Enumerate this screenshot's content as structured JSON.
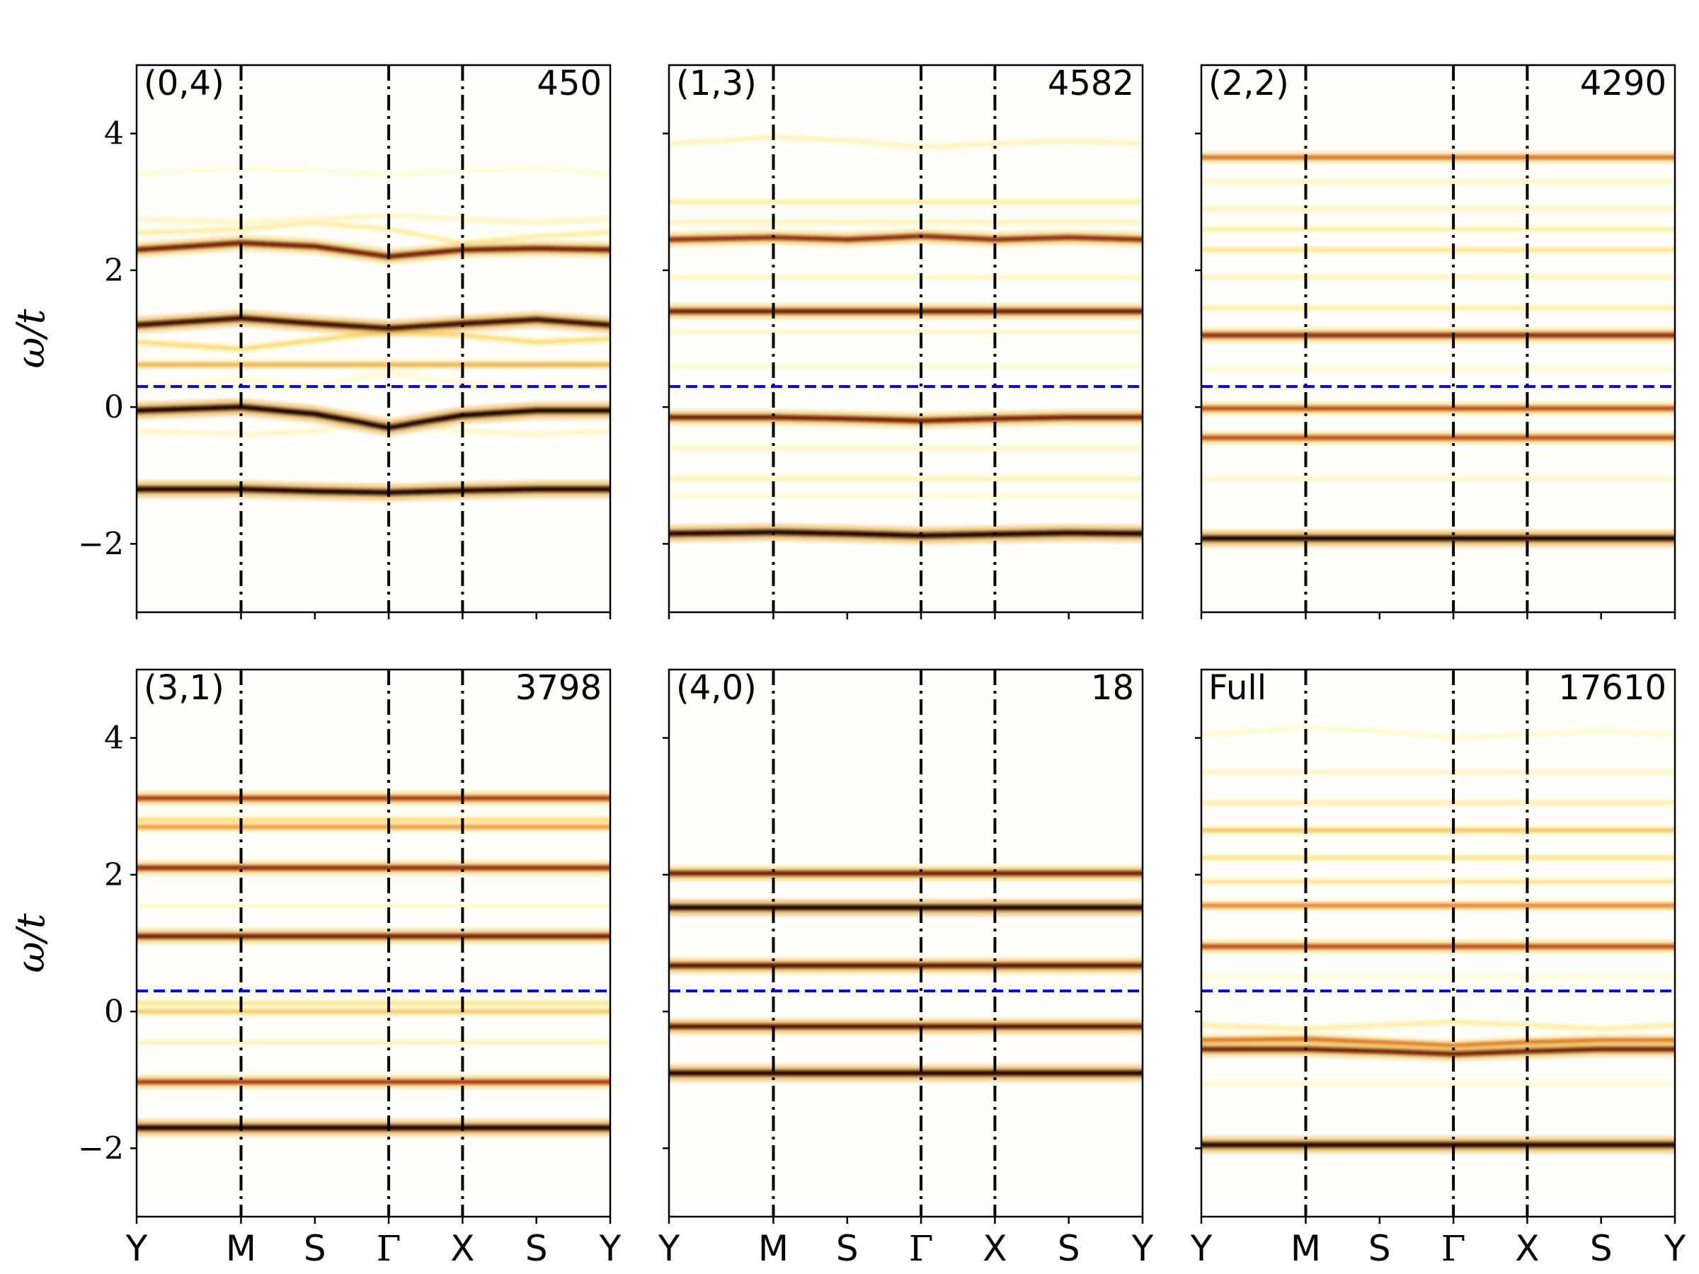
{
  "chart_data": {
    "type": "heatmap",
    "ylabel": "ω/t",
    "ylim": [
      -3,
      5
    ],
    "yticks": [
      -2,
      0,
      2,
      4
    ],
    "ytick_labels": [
      "−2",
      "0",
      "2",
      "4"
    ],
    "xtick_labels": [
      "Y",
      "M",
      "S",
      "Γ",
      "X",
      "S",
      "Y"
    ],
    "path_positions": [
      0,
      1.414,
      2.414,
      3.414,
      4.414,
      5.414,
      6.414
    ],
    "symmetry_points": [
      1.414,
      3.414,
      4.414
    ],
    "reference_line": {
      "y": 0.3,
      "style": "dashed",
      "color": "#0000dd"
    },
    "colormap": "afmhot_r",
    "panels": [
      {
        "label": "(0,4)",
        "count": "450",
        "bands": [
          {
            "y": [
              -1.2,
              -1.2,
              -1.23,
              -1.25,
              -1.22,
              -1.2,
              -1.2
            ],
            "w": 1.0
          },
          {
            "y": [
              -0.05,
              0.0,
              -0.1,
              -0.3,
              -0.12,
              -0.05,
              -0.05
            ],
            "w": 1.0
          },
          {
            "y": [
              1.2,
              1.3,
              1.22,
              1.15,
              1.22,
              1.28,
              1.2
            ],
            "w": 0.95
          },
          {
            "y": [
              0.95,
              0.85,
              0.98,
              1.1,
              1.05,
              0.95,
              1.0
            ],
            "w": 0.35
          },
          {
            "y": [
              0.62,
              0.62,
              0.62,
              0.62,
              0.62,
              0.62,
              0.62
            ],
            "w": 0.45
          },
          {
            "y": [
              2.3,
              2.4,
              2.35,
              2.2,
              2.3,
              2.32,
              2.3
            ],
            "w": 0.85
          },
          {
            "y": [
              2.55,
              2.6,
              2.7,
              2.6,
              2.4,
              2.5,
              2.55
            ],
            "w": 0.25
          },
          {
            "y": [
              2.75,
              2.7,
              2.75,
              2.8,
              2.75,
              2.7,
              2.75
            ],
            "w": 0.18
          },
          {
            "y": [
              3.4,
              3.5,
              3.45,
              3.4,
              3.45,
              3.5,
              3.4
            ],
            "w": 0.12
          },
          {
            "y": [
              -0.35,
              -0.4,
              -0.35,
              -0.2,
              -0.35,
              -0.4,
              -0.35
            ],
            "w": 0.18
          },
          {
            "y": [
              0.3,
              0.4,
              0.3,
              0.5,
              0.35,
              0.3,
              0.3
            ],
            "w": 0.15
          }
        ]
      },
      {
        "label": "(1,3)",
        "count": "4582",
        "bands": [
          {
            "y": [
              -1.85,
              -1.83,
              -1.85,
              -1.88,
              -1.86,
              -1.84,
              -1.85
            ],
            "w": 1.0
          },
          {
            "y": [
              -0.15,
              -0.15,
              -0.17,
              -0.2,
              -0.17,
              -0.15,
              -0.15
            ],
            "w": 0.85
          },
          {
            "y": [
              1.4,
              1.4,
              1.4,
              1.4,
              1.4,
              1.4,
              1.4
            ],
            "w": 0.85
          },
          {
            "y": [
              2.45,
              2.48,
              2.45,
              2.5,
              2.45,
              2.48,
              2.45
            ],
            "w": 0.8
          },
          {
            "y": [
              3.85,
              3.95,
              3.9,
              3.8,
              3.85,
              3.9,
              3.85
            ],
            "w": 0.2
          },
          {
            "y": [
              3.0,
              3.0,
              3.0,
              3.0,
              3.0,
              3.0,
              3.0
            ],
            "w": 0.25
          },
          {
            "y": [
              2.7,
              2.7,
              2.7,
              2.7,
              2.7,
              2.7,
              2.7
            ],
            "w": 0.2
          },
          {
            "y": [
              1.9,
              1.9,
              1.9,
              1.9,
              1.9,
              1.9,
              1.9
            ],
            "w": 0.18
          },
          {
            "y": [
              1.1,
              1.1,
              1.1,
              1.1,
              1.1,
              1.1,
              1.1
            ],
            "w": 0.18
          },
          {
            "y": [
              0.6,
              0.6,
              0.6,
              0.6,
              0.6,
              0.6,
              0.6
            ],
            "w": 0.15
          },
          {
            "y": [
              -0.6,
              -0.6,
              -0.6,
              -0.6,
              -0.6,
              -0.6,
              -0.6
            ],
            "w": 0.18
          },
          {
            "y": [
              -1.05,
              -1.05,
              -1.05,
              -1.05,
              -1.05,
              -1.05,
              -1.05
            ],
            "w": 0.22
          },
          {
            "y": [
              -1.3,
              -1.3,
              -1.3,
              -1.3,
              -1.3,
              -1.3,
              -1.3
            ],
            "w": 0.15
          }
        ]
      },
      {
        "label": "(2,2)",
        "count": "4290",
        "bands": [
          {
            "y": [
              -1.92,
              -1.92,
              -1.92,
              -1.92,
              -1.92,
              -1.92,
              -1.92
            ],
            "w": 1.0
          },
          {
            "y": [
              -0.45,
              -0.45,
              -0.45,
              -0.45,
              -0.45,
              -0.45,
              -0.45
            ],
            "w": 0.7
          },
          {
            "y": [
              -0.02,
              -0.02,
              -0.02,
              -0.02,
              -0.02,
              -0.02,
              -0.02
            ],
            "w": 0.7
          },
          {
            "y": [
              1.05,
              1.05,
              1.05,
              1.05,
              1.05,
              1.05,
              1.05
            ],
            "w": 0.8
          },
          {
            "y": [
              1.45,
              1.45,
              1.45,
              1.45,
              1.45,
              1.45,
              1.45
            ],
            "w": 0.25
          },
          {
            "y": [
              1.9,
              1.9,
              1.9,
              1.9,
              1.9,
              1.9,
              1.9
            ],
            "w": 0.2
          },
          {
            "y": [
              2.3,
              2.3,
              2.3,
              2.3,
              2.3,
              2.3,
              2.3
            ],
            "w": 0.3
          },
          {
            "y": [
              2.6,
              2.6,
              2.6,
              2.6,
              2.6,
              2.6,
              2.6
            ],
            "w": 0.25
          },
          {
            "y": [
              2.9,
              2.9,
              2.9,
              2.9,
              2.9,
              2.9,
              2.9
            ],
            "w": 0.2
          },
          {
            "y": [
              3.3,
              3.3,
              3.3,
              3.3,
              3.3,
              3.3,
              3.3
            ],
            "w": 0.18
          },
          {
            "y": [
              3.65,
              3.65,
              3.65,
              3.65,
              3.65,
              3.65,
              3.65
            ],
            "w": 0.6
          },
          {
            "y": [
              -1.05,
              -1.05,
              -1.05,
              -1.05,
              -1.05,
              -1.05,
              -1.05
            ],
            "w": 0.18
          },
          {
            "y": [
              0.55,
              0.55,
              0.55,
              0.55,
              0.55,
              0.55,
              0.55
            ],
            "w": 0.15
          }
        ]
      },
      {
        "label": "(3,1)",
        "count": "3798",
        "bands": [
          {
            "y": [
              -1.7,
              -1.7,
              -1.7,
              -1.7,
              -1.7,
              -1.7,
              -1.7
            ],
            "w": 1.0
          },
          {
            "y": [
              -1.03,
              -1.03,
              -1.03,
              -1.03,
              -1.03,
              -1.03,
              -1.03
            ],
            "w": 0.75
          },
          {
            "y": [
              -0.45,
              -0.45,
              -0.45,
              -0.45,
              -0.45,
              -0.45,
              -0.45
            ],
            "w": 0.2
          },
          {
            "y": [
              0.0,
              0.0,
              0.0,
              0.0,
              0.0,
              0.0,
              0.0
            ],
            "w": 0.4
          },
          {
            "y": [
              0.12,
              0.12,
              0.12,
              0.12,
              0.12,
              0.12,
              0.12
            ],
            "w": 0.3
          },
          {
            "y": [
              1.1,
              1.1,
              1.1,
              1.1,
              1.1,
              1.1,
              1.1
            ],
            "w": 0.85
          },
          {
            "y": [
              2.1,
              2.1,
              2.1,
              2.1,
              2.1,
              2.1,
              2.1
            ],
            "w": 0.8
          },
          {
            "y": [
              2.7,
              2.7,
              2.7,
              2.7,
              2.7,
              2.7,
              2.7
            ],
            "w": 0.5
          },
          {
            "y": [
              2.8,
              2.8,
              2.8,
              2.8,
              2.8,
              2.8,
              2.8
            ],
            "w": 0.35
          },
          {
            "y": [
              3.12,
              3.12,
              3.12,
              3.12,
              3.12,
              3.12,
              3.12
            ],
            "w": 0.75
          },
          {
            "y": [
              1.55,
              1.55,
              1.55,
              1.55,
              1.55,
              1.55,
              1.55
            ],
            "w": 0.15
          }
        ]
      },
      {
        "label": "(4,0)",
        "count": "18",
        "bands": [
          {
            "y": [
              -0.9,
              -0.9,
              -0.9,
              -0.9,
              -0.9,
              -0.9,
              -0.9
            ],
            "w": 1.0
          },
          {
            "y": [
              -0.22,
              -0.22,
              -0.22,
              -0.22,
              -0.22,
              -0.22,
              -0.22
            ],
            "w": 0.9
          },
          {
            "y": [
              0.67,
              0.67,
              0.67,
              0.67,
              0.67,
              0.67,
              0.67
            ],
            "w": 0.9
          },
          {
            "y": [
              1.52,
              1.52,
              1.52,
              1.52,
              1.52,
              1.52,
              1.52
            ],
            "w": 1.0
          },
          {
            "y": [
              2.02,
              2.02,
              2.02,
              2.02,
              2.02,
              2.02,
              2.02
            ],
            "w": 0.85
          }
        ]
      },
      {
        "label": "Full",
        "count": "17610",
        "bands": [
          {
            "y": [
              -1.95,
              -1.95,
              -1.95,
              -1.95,
              -1.95,
              -1.95,
              -1.95
            ],
            "w": 1.0
          },
          {
            "y": [
              -0.55,
              -0.55,
              -0.58,
              -0.62,
              -0.58,
              -0.55,
              -0.55
            ],
            "w": 0.85
          },
          {
            "y": [
              -0.42,
              -0.4,
              -0.45,
              -0.5,
              -0.45,
              -0.42,
              -0.42
            ],
            "w": 0.6
          },
          {
            "y": [
              -0.2,
              -0.25,
              -0.2,
              -0.15,
              -0.2,
              -0.25,
              -0.2
            ],
            "w": 0.25
          },
          {
            "y": [
              0.95,
              0.95,
              0.95,
              0.95,
              0.95,
              0.95,
              0.95
            ],
            "w": 0.7
          },
          {
            "y": [
              1.55,
              1.55,
              1.55,
              1.55,
              1.55,
              1.55,
              1.55
            ],
            "w": 0.55
          },
          {
            "y": [
              1.9,
              1.9,
              1.9,
              1.9,
              1.9,
              1.9,
              1.9
            ],
            "w": 0.3
          },
          {
            "y": [
              2.25,
              2.25,
              2.25,
              2.25,
              2.25,
              2.25,
              2.25
            ],
            "w": 0.3
          },
          {
            "y": [
              2.65,
              2.65,
              2.65,
              2.65,
              2.65,
              2.65,
              2.65
            ],
            "w": 0.4
          },
          {
            "y": [
              3.05,
              3.05,
              3.05,
              3.05,
              3.05,
              3.05,
              3.05
            ],
            "w": 0.25
          },
          {
            "y": [
              3.5,
              3.5,
              3.5,
              3.5,
              3.5,
              3.5,
              3.5
            ],
            "w": 0.18
          },
          {
            "y": [
              4.05,
              4.15,
              4.1,
              4.0,
              4.05,
              4.1,
              4.05
            ],
            "w": 0.15
          },
          {
            "y": [
              0.5,
              0.5,
              0.5,
              0.5,
              0.5,
              0.5,
              0.5
            ],
            "w": 0.15
          },
          {
            "y": [
              -1.05,
              -1.05,
              -1.05,
              -1.05,
              -1.05,
              -1.05,
              -1.05
            ],
            "w": 0.15
          }
        ]
      }
    ]
  }
}
